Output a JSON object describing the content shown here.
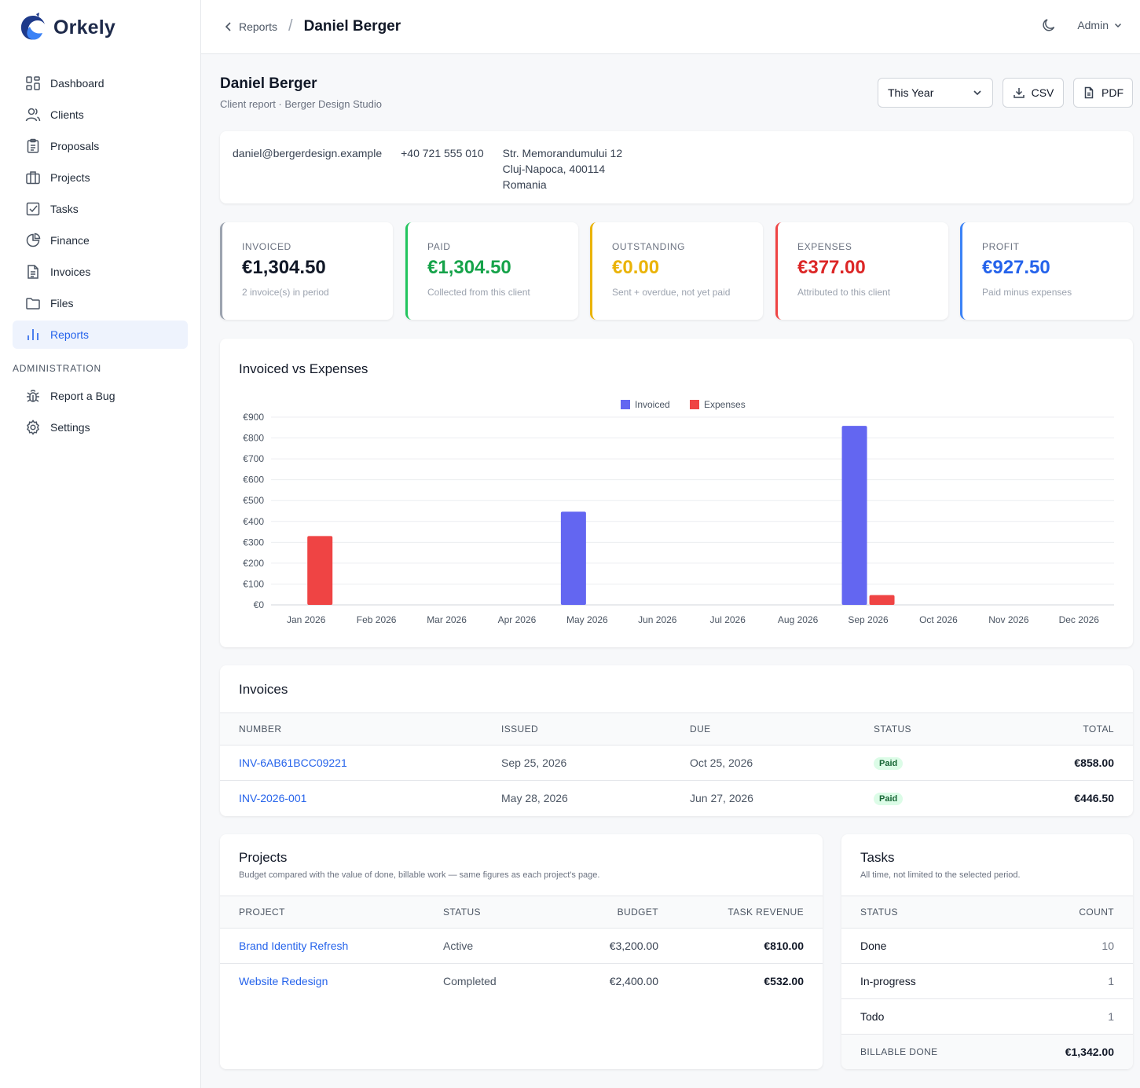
{
  "app": {
    "name": "Orkely"
  },
  "sidebar": {
    "items": [
      {
        "label": "Dashboard",
        "icon": "dashboard-icon"
      },
      {
        "label": "Clients",
        "icon": "users-icon"
      },
      {
        "label": "Proposals",
        "icon": "clipboard-icon"
      },
      {
        "label": "Projects",
        "icon": "briefcase-icon"
      },
      {
        "label": "Tasks",
        "icon": "checkbox-icon"
      },
      {
        "label": "Finance",
        "icon": "pie-chart-icon"
      },
      {
        "label": "Invoices",
        "icon": "document-icon"
      },
      {
        "label": "Files",
        "icon": "folder-icon"
      },
      {
        "label": "Reports",
        "icon": "bar-chart-icon",
        "active": true
      }
    ],
    "admin_section": "ADMINISTRATION",
    "admin_items": [
      {
        "label": "Report a Bug",
        "icon": "bug-icon"
      },
      {
        "label": "Settings",
        "icon": "gear-icon"
      }
    ]
  },
  "header": {
    "back_label": "Reports",
    "separator": "/",
    "title": "Daniel Berger",
    "user": "Admin"
  },
  "page": {
    "title": "Daniel Berger",
    "subtitle": "Client report · Berger Design Studio",
    "period": "This Year",
    "csv_label": "CSV",
    "pdf_label": "PDF"
  },
  "contact": {
    "email": "daniel@bergerdesign.example",
    "phone": "+40 721 555 010",
    "address_line1": "Str. Memorandumului 12",
    "address_line2": "Cluj-Napoca, 400114",
    "address_line3": "Romania"
  },
  "kpis": [
    {
      "label": "INVOICED",
      "value": "€1,304.50",
      "desc": "2 invoice(s) in period",
      "color": "#9ca3af",
      "value_color": "#111827"
    },
    {
      "label": "PAID",
      "value": "€1,304.50",
      "desc": "Collected from this client",
      "color": "#22c55e",
      "value_color": "#16a34a"
    },
    {
      "label": "OUTSTANDING",
      "value": "€0.00",
      "desc": "Sent + overdue, not yet paid",
      "color": "#eab308",
      "value_color": "#eab308"
    },
    {
      "label": "EXPENSES",
      "value": "€377.00",
      "desc": "Attributed to this client",
      "color": "#ef4444",
      "value_color": "#dc2626"
    },
    {
      "label": "PROFIT",
      "value": "€927.50",
      "desc": "Paid minus expenses",
      "color": "#3b82f6",
      "value_color": "#2563eb"
    }
  ],
  "chart_data": {
    "type": "bar",
    "title": "Invoiced vs Expenses",
    "categories": [
      "Jan 2026",
      "Feb 2026",
      "Mar 2026",
      "Apr 2026",
      "May 2026",
      "Jun 2026",
      "Jul 2026",
      "Aug 2026",
      "Sep 2026",
      "Oct 2026",
      "Nov 2026",
      "Dec 2026"
    ],
    "series": [
      {
        "name": "Invoiced",
        "color": "#6366f1",
        "values": [
          0,
          0,
          0,
          0,
          446.5,
          0,
          0,
          0,
          858,
          0,
          0,
          0
        ]
      },
      {
        "name": "Expenses",
        "color": "#ef4444",
        "values": [
          330,
          0,
          0,
          0,
          0,
          0,
          0,
          0,
          47,
          0,
          0,
          0
        ]
      }
    ],
    "ylim": [
      0,
      900
    ],
    "yticks": [
      "€0",
      "€100",
      "€200",
      "€300",
      "€400",
      "€500",
      "€600",
      "€700",
      "€800",
      "€900"
    ],
    "legend": "top-center",
    "grid": true
  },
  "invoices": {
    "title": "Invoices",
    "columns": [
      "NUMBER",
      "ISSUED",
      "DUE",
      "STATUS",
      "TOTAL"
    ],
    "rows": [
      {
        "number": "INV-6AB61BCC09221",
        "issued": "Sep 25, 2026",
        "due": "Oct 25, 2026",
        "status": "Paid",
        "total": "€858.00"
      },
      {
        "number": "INV-2026-001",
        "issued": "May 28, 2026",
        "due": "Jun 27, 2026",
        "status": "Paid",
        "total": "€446.50"
      }
    ]
  },
  "projects": {
    "title": "Projects",
    "subtitle": "Budget compared with the value of done, billable work — same figures as each project's page.",
    "columns": [
      "PROJECT",
      "STATUS",
      "BUDGET",
      "TASK REVENUE"
    ],
    "rows": [
      {
        "name": "Brand Identity Refresh",
        "status": "Active",
        "budget": "€3,200.00",
        "revenue": "€810.00"
      },
      {
        "name": "Website Redesign",
        "status": "Completed",
        "budget": "€2,400.00",
        "revenue": "€532.00"
      }
    ]
  },
  "tasks": {
    "title": "Tasks",
    "subtitle": "All time, not limited to the selected period.",
    "columns": [
      "STATUS",
      "COUNT"
    ],
    "rows": [
      {
        "status": "Done",
        "count": "10"
      },
      {
        "status": "In-progress",
        "count": "1"
      },
      {
        "status": "Todo",
        "count": "1"
      }
    ],
    "footer_label": "BILLABLE DONE",
    "footer_value": "€1,342.00"
  }
}
